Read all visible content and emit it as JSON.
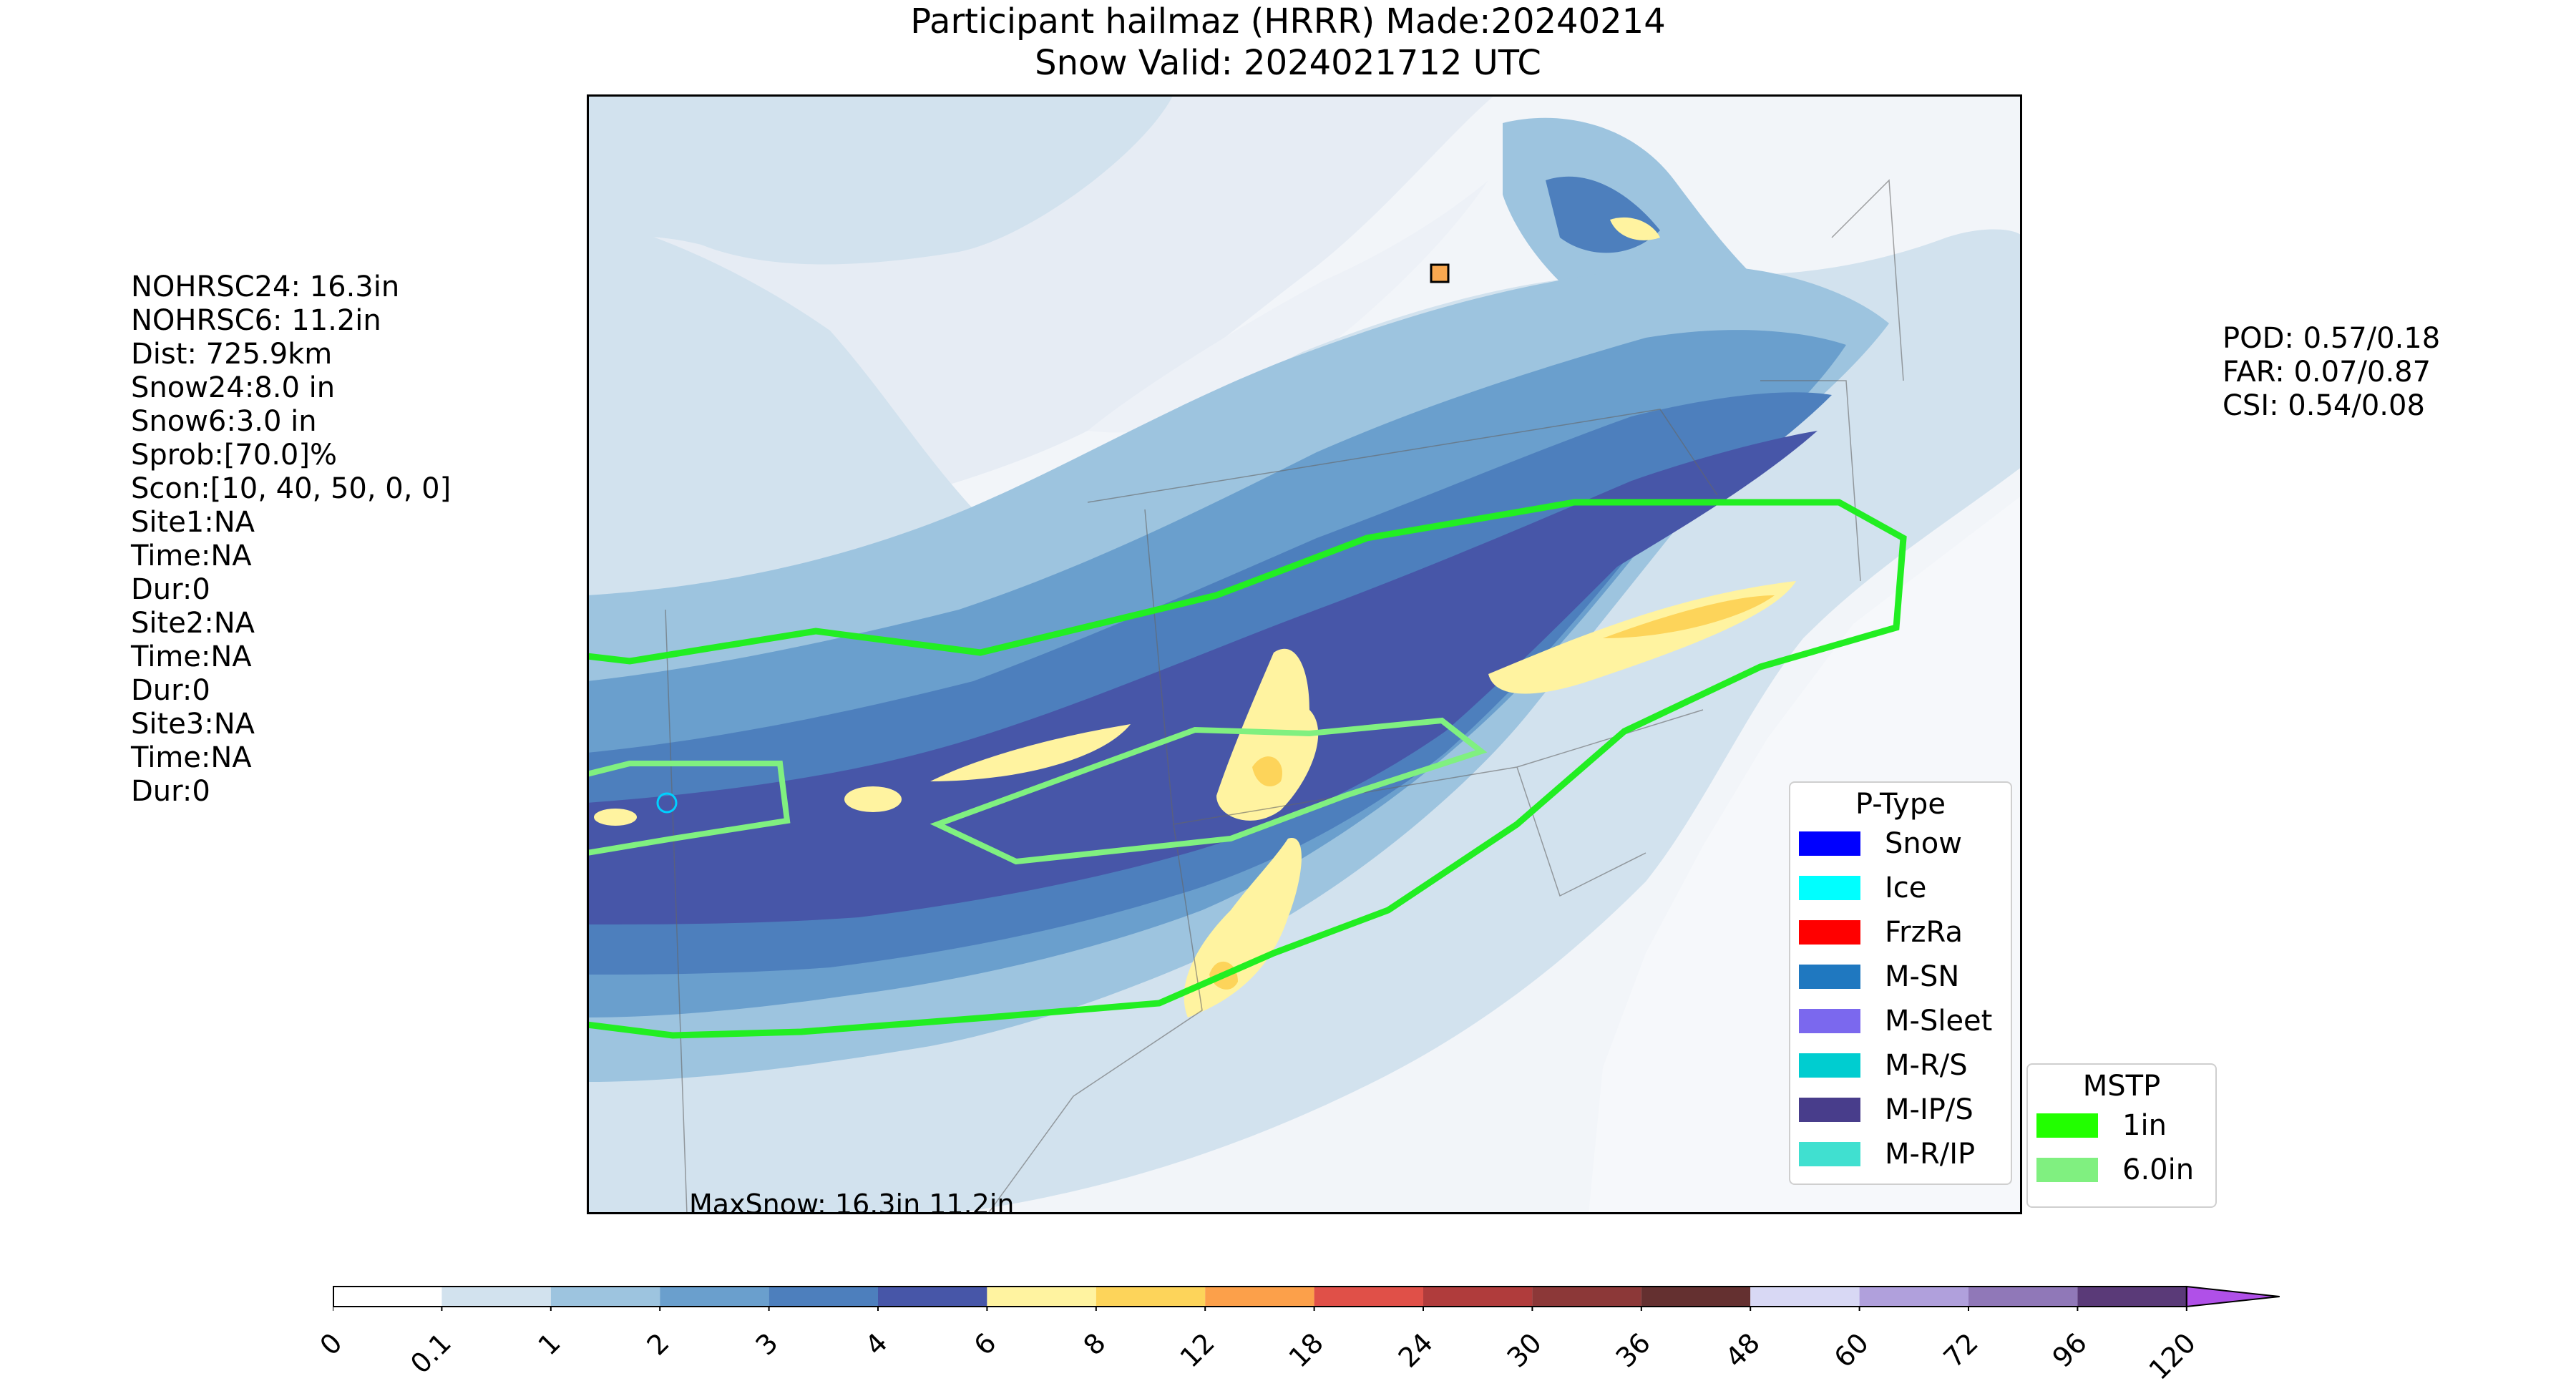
{
  "title": {
    "line1": "Participant hailmaz (HRRR) Made:20240214",
    "line2": "Snow Valid: 2024021712 UTC"
  },
  "left_stats": [
    "NOHRSC24: 16.3in",
    "NOHRSC6: 11.2in",
    "Dist: 725.9km",
    "Snow24:8.0 in",
    "Snow6:3.0 in",
    "Sprob:[70.0]%",
    "Scon:[10, 40, 50, 0, 0]",
    "Site1:NA",
    "Time:NA",
    "Dur:0",
    "Site2:NA",
    "Time:NA",
    "Dur:0",
    "Site3:NA",
    "Time:NA",
    "Dur:0"
  ],
  "right_stats": [
    "POD: 0.57/0.18",
    "FAR: 0.07/0.87",
    "CSI: 0.54/0.08"
  ],
  "map": {
    "max_snow_label": "MaxSnow: 16.3in 11.2in",
    "colors": {
      "land": "#f2f5f9",
      "contour_01": "#d2e2ee",
      "contour_1": "#9dc4df",
      "contour_2": "#6a9fcd",
      "contour_3": "#4d7fbd",
      "contour_4": "#4756a8",
      "contour_6": "#fff3a0",
      "contour_8": "#fdd45a",
      "mstp_1in": "#22ee22",
      "mstp_6in": "#80f080"
    }
  },
  "ptype_legend": {
    "title": "P-Type",
    "items": [
      {
        "label": "Snow",
        "color": "#0000ff"
      },
      {
        "label": "Ice",
        "color": "#00ffff"
      },
      {
        "label": "FrzRa",
        "color": "#ff0000"
      },
      {
        "label": "M-SN",
        "color": "#1f78c0"
      },
      {
        "label": "M-Sleet",
        "color": "#7b68ee"
      },
      {
        "label": "M-R/S",
        "color": "#00cdd0"
      },
      {
        "label": "M-IP/S",
        "color": "#483d8b"
      },
      {
        "label": "M-R/IP",
        "color": "#40e0d0"
      }
    ]
  },
  "mstp_legend": {
    "title": "MSTP",
    "items": [
      {
        "label": "1in",
        "color": "#22ff00"
      },
      {
        "label": "6.0in",
        "color": "#80f080"
      }
    ]
  },
  "colorbar": {
    "ticks": [
      "0",
      "0.1",
      "1",
      "2",
      "3",
      "4",
      "6",
      "8",
      "12",
      "18",
      "24",
      "30",
      "36",
      "48",
      "60",
      "72",
      "96",
      "120"
    ],
    "colors": [
      "#ffffff",
      "#d2e2ee",
      "#9dc4df",
      "#6a9fcd",
      "#4d7fbd",
      "#4756a8",
      "#fff3a0",
      "#fdd45a",
      "#fca04a",
      "#e05048",
      "#b03c3c",
      "#8c3838",
      "#643030",
      "#d8d8f4",
      "#b0a0dc",
      "#9078b8",
      "#5a3a78"
    ],
    "extend_color": "#b050e8"
  }
}
